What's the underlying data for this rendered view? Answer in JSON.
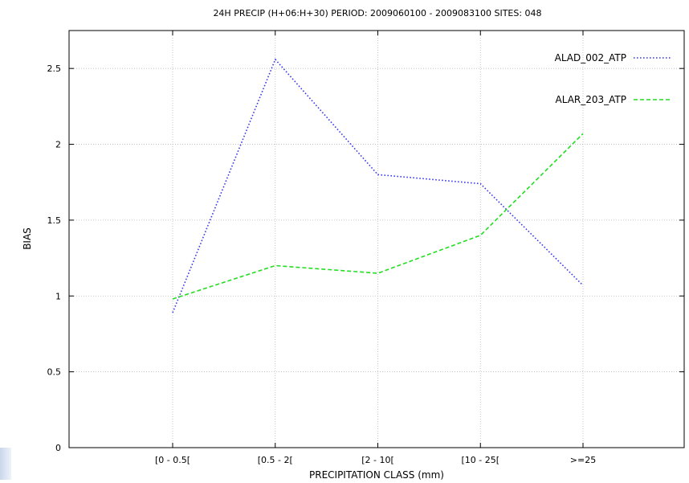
{
  "chart_data": {
    "type": "line",
    "title": "24H PRECIP (H+06:H+30) PERIOD: 2009060100 - 2009083100 SITES: 048",
    "xlabel": "PRECIPITATION CLASS (mm)",
    "ylabel": "BIAS",
    "categories": [
      "[0 - 0.5[",
      "[0.5 - 2[",
      "[2 - 10[",
      "[10 - 25[",
      ">=25"
    ],
    "ylim": [
      0,
      2.75
    ],
    "yticks": [
      0,
      0.5,
      1,
      1.5,
      2,
      2.5
    ],
    "ytick_labels": [
      "0",
      "0.5",
      "1",
      "1.5",
      "2",
      "2.5"
    ],
    "grid": true,
    "legend_position": "top-right",
    "series": [
      {
        "name": "ALAD_002_ATP",
        "values": [
          0.89,
          2.56,
          1.8,
          1.74,
          1.07
        ],
        "color": "#3a3ae8",
        "dash": "dotted"
      },
      {
        "name": "ALAR_203_ATP",
        "values": [
          0.98,
          1.2,
          1.15,
          1.4,
          2.07
        ],
        "color": "#22dd22",
        "dash": "dashed"
      }
    ]
  }
}
